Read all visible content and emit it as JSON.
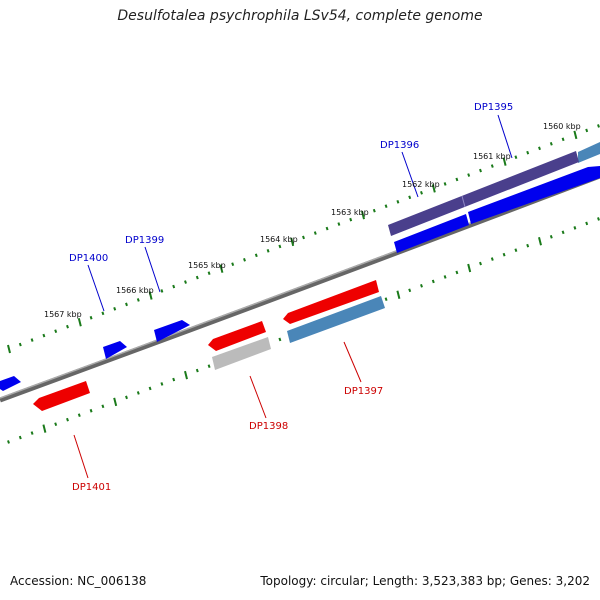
{
  "title": "Desulfotalea psychrophila LSv54, complete genome",
  "footer": {
    "accession": "Accession: NC_006138",
    "summary": "Topology: circular; Length: 3,523,383 bp; Genes: 3,202"
  },
  "scale_labels": [
    "1560 kbp",
    "1561 kbp",
    "1562 kbp",
    "1563 kbp",
    "1564 kbp",
    "1565 kbp",
    "1566 kbp",
    "1567 kbp"
  ],
  "gene_labels": [
    {
      "text": "DP1395",
      "color": "#0000cc"
    },
    {
      "text": "DP1396",
      "color": "#0000cc"
    },
    {
      "text": "DP1399",
      "color": "#0000cc"
    },
    {
      "text": "DP1400",
      "color": "#0000cc"
    },
    {
      "text": "DP1397",
      "color": "#cc0000"
    },
    {
      "text": "DP1398",
      "color": "#cc0000"
    },
    {
      "text": "DP1401",
      "color": "#cc0000"
    }
  ],
  "colors": {
    "backbone": "#888888",
    "tick": "#1a7a1a",
    "forward_gene": "#0000ee",
    "reverse_gene": "#ee0000",
    "dark_gene": "#4a3f8c",
    "steel_gene": "#4a86b8",
    "grey_gene": "#bbbbbb"
  }
}
